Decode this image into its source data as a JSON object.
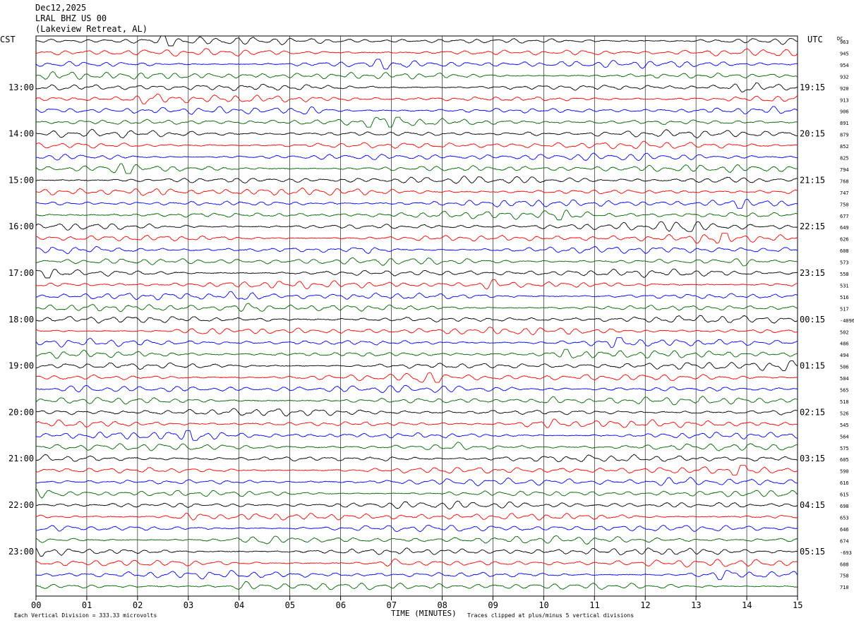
{
  "header": {
    "date": "Dec12,2025",
    "station": "LRAL BHZ US 00",
    "location": "(Lakeview Retreat, AL)"
  },
  "axes": {
    "left_zone": "CST",
    "right_zone": "UTC",
    "dc_label": "DC",
    "xlabel": "TIME (MINUTES)",
    "footer_left": "Each Vertical Division =  333.33 microvolts",
    "footer_right": "Traces clipped at plus/minus 5 vertical divisions"
  },
  "chart_data": {
    "type": "line",
    "title": "LRAL BHZ US 00",
    "xlabel": "TIME (MINUTES)",
    "x_ticks": [
      "00",
      "01",
      "02",
      "03",
      "04",
      "05",
      "06",
      "07",
      "08",
      "09",
      "10",
      "11",
      "12",
      "13",
      "14",
      "15"
    ],
    "xlim": [
      0,
      15
    ],
    "grid": "vertical lines each minute",
    "minutes_per_trace": 15,
    "trace_colors": [
      "#000000",
      "#ff0000",
      "#0000ff",
      "#006400"
    ],
    "cst_hour_labels": [
      "13:00",
      "14:00",
      "15:00",
      "16:00",
      "17:00",
      "18:00",
      "19:00",
      "20:00",
      "21:00",
      "22:00",
      "23:00"
    ],
    "utc_hour_labels": [
      "19:15",
      "20:15",
      "21:15",
      "22:15",
      "23:15",
      "00:15",
      "01:15",
      "02:15",
      "03:15",
      "04:15",
      "05:15"
    ],
    "trace_dc_offsets": [
      "963",
      "945",
      "954",
      "932",
      "920",
      "913",
      "906",
      "891",
      "879",
      "852",
      "825",
      "794",
      "768",
      "747",
      "750",
      "677",
      "649",
      "626",
      "608",
      "573",
      "558",
      "531",
      "516",
      "517",
      "-4096",
      "502",
      "486",
      "494",
      "506",
      "504",
      "565",
      "518",
      "526",
      "545",
      "564",
      "575",
      "605",
      "590",
      "616",
      "615",
      "698",
      "653",
      "646",
      "674",
      "-693",
      "688",
      "758",
      "710"
    ]
  }
}
